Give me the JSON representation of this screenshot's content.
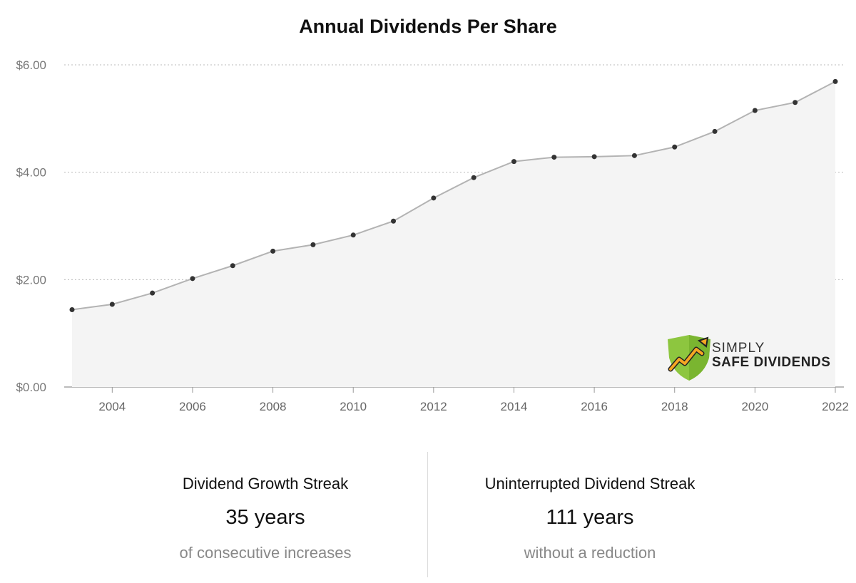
{
  "chart_data": {
    "type": "area",
    "title": "Annual Dividends Per Share",
    "xlabel": "",
    "ylabel": "",
    "x": [
      2003,
      2004,
      2005,
      2006,
      2007,
      2008,
      2009,
      2010,
      2011,
      2012,
      2013,
      2014,
      2015,
      2016,
      2017,
      2018,
      2019,
      2020,
      2021,
      2022
    ],
    "series": [
      {
        "values": [
          1.44,
          1.54,
          1.75,
          2.02,
          2.26,
          2.53,
          2.65,
          2.83,
          3.09,
          3.52,
          3.9,
          4.2,
          4.28,
          4.29,
          4.31,
          4.47,
          4.76,
          5.15,
          5.3,
          5.69
        ]
      }
    ],
    "x_ticks": [
      "2004",
      "2006",
      "2008",
      "2010",
      "2012",
      "2014",
      "2016",
      "2018",
      "2020",
      "2022"
    ],
    "y_ticks": [
      "$0.00",
      "$2.00",
      "$4.00",
      "$6.00"
    ],
    "ylim": [
      0,
      6
    ],
    "xlim": [
      2003,
      2022
    ],
    "grid": "horizontal dotted",
    "colors": {
      "line": "#b3b3b3",
      "fill": "#f4f4f4",
      "point": "#333333",
      "grid": "#bbbbbb"
    }
  },
  "logo": {
    "line1": "SIMPLY",
    "line2": "SAFE DIVIDENDS",
    "shield_color": "#8dc63f",
    "arrow_color": "#f5a623"
  },
  "stats": {
    "growth": {
      "label": "Dividend Growth Streak",
      "value": "35 years",
      "sub": "of consecutive increases"
    },
    "uninterrupted": {
      "label": "Uninterrupted Dividend Streak",
      "value": "111 years",
      "sub": "without a reduction"
    }
  }
}
